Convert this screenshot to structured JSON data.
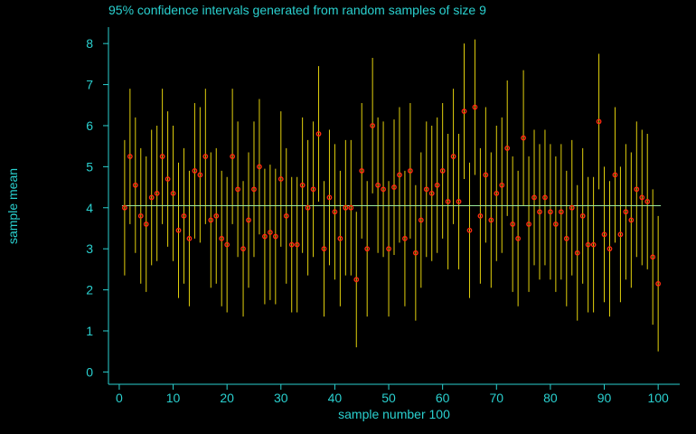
{
  "chart_data": {
    "type": "scatter",
    "title": "95% confidence intervals generated from random samples of size 9",
    "xlabel": "sample number 100",
    "ylabel": "sample mean",
    "xlim": [
      -2,
      104
    ],
    "ylim": [
      -0.3,
      8.4
    ],
    "xticks": [
      0,
      10,
      20,
      30,
      40,
      50,
      60,
      70,
      80,
      90,
      100
    ],
    "yticks": [
      0,
      1,
      2,
      3,
      4,
      5,
      6,
      7,
      8
    ],
    "reference_line": 4.05,
    "interval_half_width": 1.65,
    "colors": {
      "background": "#000000",
      "axis": "#2ad0cf",
      "interval": "#e3d10c",
      "point": "#ff2a10",
      "reference": "#9ae79a"
    },
    "samples": [
      1,
      2,
      3,
      4,
      5,
      6,
      7,
      8,
      9,
      10,
      11,
      12,
      13,
      14,
      15,
      16,
      17,
      18,
      19,
      20,
      21,
      22,
      23,
      24,
      25,
      26,
      27,
      28,
      29,
      30,
      31,
      32,
      33,
      34,
      35,
      36,
      37,
      38,
      39,
      40,
      41,
      42,
      43,
      44,
      45,
      46,
      47,
      48,
      49,
      50,
      51,
      52,
      53,
      54,
      55,
      56,
      57,
      58,
      59,
      60,
      61,
      62,
      63,
      64,
      65,
      66,
      67,
      68,
      69,
      70,
      71,
      72,
      73,
      74,
      75,
      76,
      77,
      78,
      79,
      80,
      81,
      82,
      83,
      84,
      85,
      86,
      87,
      88,
      89,
      90,
      91,
      92,
      93,
      94,
      95,
      96,
      97,
      98,
      99,
      100
    ],
    "means": [
      4.0,
      5.25,
      4.55,
      3.8,
      3.6,
      4.25,
      4.35,
      5.25,
      4.7,
      4.35,
      3.45,
      3.8,
      3.25,
      4.9,
      4.8,
      5.25,
      3.7,
      3.8,
      3.25,
      3.1,
      5.25,
      4.45,
      3.0,
      3.7,
      4.45,
      5.0,
      3.3,
      3.4,
      3.3,
      4.7,
      3.8,
      3.1,
      3.1,
      4.55,
      4.0,
      4.45,
      5.8,
      3.0,
      4.25,
      3.9,
      3.25,
      4.0,
      4.0,
      2.25,
      4.9,
      3.0,
      6.0,
      4.55,
      4.45,
      3.0,
      4.5,
      4.8,
      3.25,
      4.9,
      2.9,
      3.7,
      4.45,
      4.35,
      4.55,
      4.9,
      4.15,
      5.25,
      4.15,
      6.35,
      3.45,
      6.45,
      3.8,
      4.8,
      3.7,
      4.35,
      4.55,
      5.45,
      3.6,
      3.25,
      5.7,
      3.6,
      4.25,
      3.9,
      4.25,
      3.9,
      3.6,
      3.9,
      3.25,
      4.0,
      2.9,
      3.8,
      3.1,
      3.1,
      6.1,
      3.35,
      3.0,
      4.8,
      3.35,
      3.9,
      3.7,
      4.45,
      4.25,
      4.15,
      2.8,
      2.15
    ]
  }
}
